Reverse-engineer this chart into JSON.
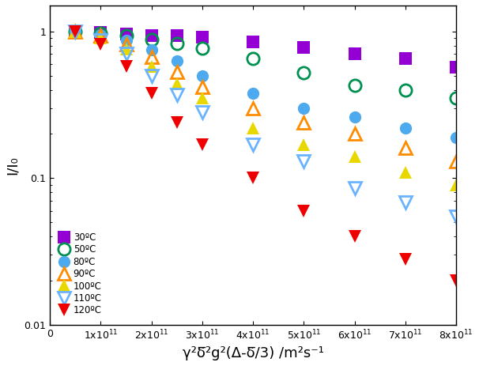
{
  "title": "",
  "xlabel": "γ²δ̅²g²(Δ-δ̅/3) /m²s⁻¹",
  "ylabel": "I/I₀",
  "xlim": [
    0,
    800000000000.0
  ],
  "ylim": [
    0.01,
    1.5
  ],
  "background_color": "#ffffff",
  "series": [
    {
      "label": "30ºC",
      "color": "#9400D3",
      "marker": "s",
      "filled": true,
      "x": [
        50000000000.0,
        100000000000.0,
        150000000000.0,
        200000000000.0,
        250000000000.0,
        300000000000.0,
        400000000000.0,
        500000000000.0,
        600000000000.0,
        700000000000.0,
        800000000000.0
      ],
      "y": [
        1.0,
        0.98,
        0.96,
        0.94,
        0.93,
        0.91,
        0.85,
        0.78,
        0.7,
        0.65,
        0.57
      ]
    },
    {
      "label": "50ºC",
      "color": "#009050",
      "marker": "o",
      "filled": false,
      "x": [
        50000000000.0,
        100000000000.0,
        150000000000.0,
        200000000000.0,
        250000000000.0,
        300000000000.0,
        400000000000.0,
        500000000000.0,
        600000000000.0,
        700000000000.0,
        800000000000.0
      ],
      "y": [
        1.0,
        0.97,
        0.93,
        0.88,
        0.83,
        0.77,
        0.65,
        0.52,
        0.43,
        0.4,
        0.35
      ]
    },
    {
      "label": "80ºC",
      "color": "#4DAAEE",
      "marker": "o",
      "filled": true,
      "x": [
        50000000000.0,
        100000000000.0,
        150000000000.0,
        200000000000.0,
        250000000000.0,
        300000000000.0,
        400000000000.0,
        500000000000.0,
        600000000000.0,
        700000000000.0,
        800000000000.0
      ],
      "y": [
        1.0,
        0.95,
        0.87,
        0.75,
        0.63,
        0.5,
        0.38,
        0.3,
        0.26,
        0.22,
        0.19
      ]
    },
    {
      "label": "90ºC",
      "color": "#FF8C00",
      "marker": "^",
      "filled": false,
      "x": [
        50000000000.0,
        100000000000.0,
        150000000000.0,
        200000000000.0,
        250000000000.0,
        300000000000.0,
        400000000000.0,
        500000000000.0,
        600000000000.0,
        700000000000.0,
        800000000000.0
      ],
      "y": [
        1.0,
        0.93,
        0.82,
        0.67,
        0.53,
        0.42,
        0.3,
        0.24,
        0.2,
        0.16,
        0.13
      ]
    },
    {
      "label": "100ºC",
      "color": "#E8D800",
      "marker": "^",
      "filled": true,
      "x": [
        50000000000.0,
        100000000000.0,
        150000000000.0,
        200000000000.0,
        250000000000.0,
        300000000000.0,
        400000000000.0,
        500000000000.0,
        600000000000.0,
        700000000000.0,
        800000000000.0
      ],
      "y": [
        1.0,
        0.9,
        0.76,
        0.58,
        0.44,
        0.35,
        0.22,
        0.17,
        0.14,
        0.11,
        0.09
      ]
    },
    {
      "label": "110ºC",
      "color": "#6AB4FF",
      "marker": "v",
      "filled": false,
      "x": [
        50000000000.0,
        100000000000.0,
        150000000000.0,
        200000000000.0,
        250000000000.0,
        300000000000.0,
        400000000000.0,
        500000000000.0,
        600000000000.0,
        700000000000.0,
        800000000000.0
      ],
      "y": [
        1.0,
        0.87,
        0.7,
        0.5,
        0.37,
        0.28,
        0.17,
        0.13,
        0.085,
        0.068,
        0.055
      ]
    },
    {
      "label": "120ºC",
      "color": "#EE0000",
      "marker": "v",
      "filled": true,
      "x": [
        50000000000.0,
        100000000000.0,
        150000000000.0,
        200000000000.0,
        250000000000.0,
        300000000000.0,
        400000000000.0,
        500000000000.0,
        600000000000.0,
        700000000000.0,
        800000000000.0
      ],
      "y": [
        1.0,
        0.82,
        0.58,
        0.38,
        0.24,
        0.17,
        0.1,
        0.06,
        0.04,
        0.028,
        0.02
      ]
    }
  ],
  "xticks": [
    0,
    100000000000.0,
    200000000000.0,
    300000000000.0,
    400000000000.0,
    500000000000.0,
    600000000000.0,
    700000000000.0,
    800000000000.0
  ],
  "xtick_labels": [
    "0",
    "1x10$^{11}$",
    "2x10$^{11}$",
    "3x10$^{11}$",
    "4x10$^{11}$",
    "5x10$^{11}$",
    "6x10$^{11}$",
    "7x10$^{11}$",
    "8x10$^{11}$"
  ],
  "yticks": [
    0.01,
    0.1,
    1.0
  ],
  "ytick_labels": [
    "0.01",
    "0.1",
    "1"
  ],
  "legend_loc": "lower left",
  "markersize": 11,
  "legend_fontsize": 8.5,
  "axis_fontsize": 13,
  "tick_fontsize": 9
}
